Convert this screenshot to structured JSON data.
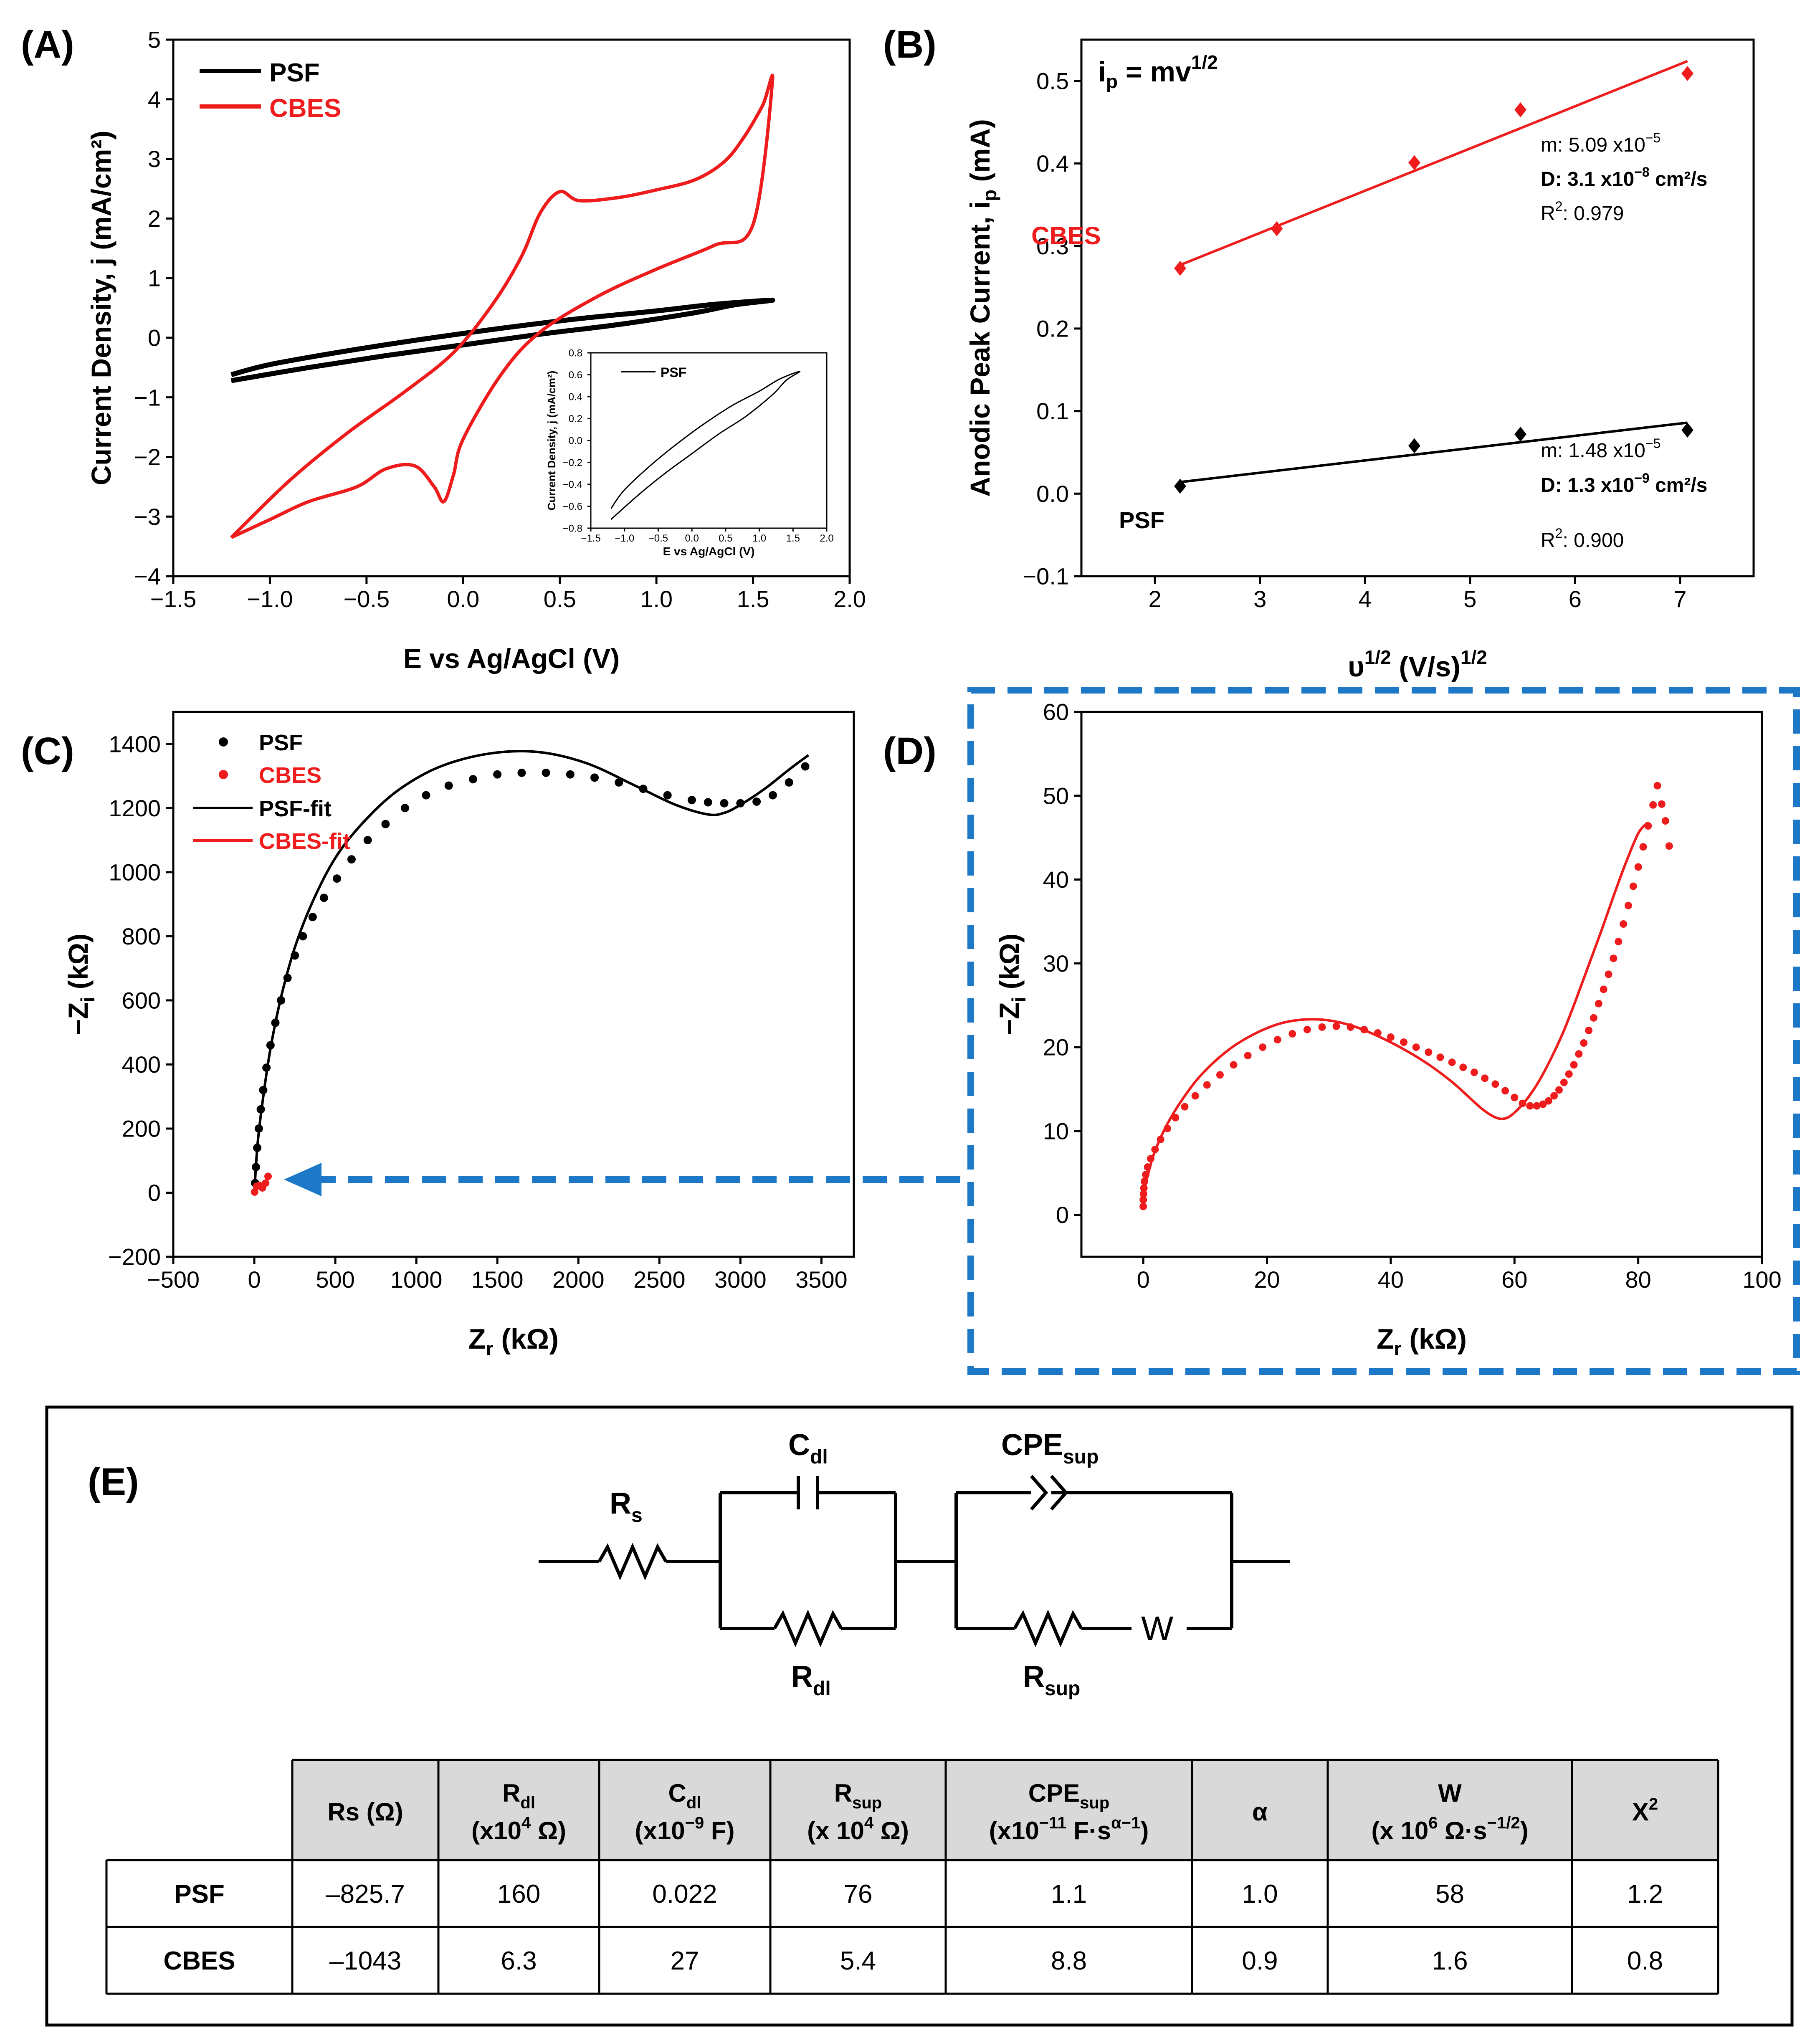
{
  "panels": {
    "A": {
      "label": "(A)"
    },
    "B": {
      "label": "(B)"
    },
    "C": {
      "label": "(C)"
    },
    "D": {
      "label": "(D)"
    },
    "E": {
      "label": "(E)"
    }
  },
  "colors": {
    "psf": "#000000",
    "cbes": "#ee1c1c",
    "highlight": "#1d78c8",
    "table_header_bg": "#d9d9d9"
  },
  "chart_data": [
    {
      "id": "A",
      "type": "line",
      "title": "",
      "xlabel": "E vs Ag/AgCl (V)",
      "ylabel": "Current Density, j (mA/cm²)",
      "xlim": [
        -1.5,
        2.0
      ],
      "ylim": [
        -4,
        5
      ],
      "xticks": [
        "−1.5",
        "−1.0",
        "−0.5",
        "0.0",
        "0.5",
        "1.0",
        "1.5",
        "2.0"
      ],
      "yticks": [
        "−4",
        "−3",
        "−2",
        "−1",
        "0",
        "1",
        "2",
        "3",
        "4",
        "5"
      ],
      "legend": [
        "PSF",
        "CBES"
      ],
      "series": [
        {
          "name": "PSF",
          "x": [
            -1.2,
            -0.8,
            -0.4,
            0.0,
            0.4,
            0.8,
            1.2,
            1.4,
            1.6,
            1.3,
            1.0,
            0.6,
            0.2,
            -0.2,
            -0.6,
            -1.0,
            -1.2
          ],
          "y": [
            -0.72,
            -0.5,
            -0.3,
            -0.12,
            0.06,
            0.22,
            0.42,
            0.55,
            0.63,
            0.56,
            0.45,
            0.32,
            0.16,
            -0.02,
            -0.22,
            -0.45,
            -0.62
          ]
        },
        {
          "name": "CBES",
          "x": [
            -1.2,
            -0.9,
            -0.6,
            -0.3,
            -0.05,
            0.15,
            0.3,
            0.4,
            0.5,
            0.6,
            0.8,
            1.0,
            1.2,
            1.35,
            1.45,
            1.55,
            1.6,
            1.5,
            1.3,
            1.0,
            0.7,
            0.4,
            0.2,
            0.0,
            -0.05,
            -0.1,
            -0.15,
            -0.25,
            -0.4,
            -0.55,
            -0.8,
            -1.0,
            -1.2
          ],
          "y": [
            -3.35,
            -2.4,
            -1.6,
            -0.9,
            -0.25,
            0.55,
            1.35,
            2.1,
            2.45,
            2.3,
            2.35,
            2.48,
            2.65,
            2.95,
            3.35,
            3.9,
            4.3,
            1.9,
            1.55,
            1.15,
            0.7,
            0.1,
            -0.6,
            -1.7,
            -2.3,
            -2.75,
            -2.5,
            -2.15,
            -2.2,
            -2.5,
            -2.75,
            -3.05,
            -3.35
          ]
        }
      ],
      "inset": {
        "xlabel": "E vs Ag/AgCl (V)",
        "ylabel": "Current Density, j (mA/cm²)",
        "legend": "PSF",
        "xlim": [
          -1.5,
          2.0
        ],
        "ylim": [
          -0.8,
          0.8
        ],
        "xticks": [
          "−1.5",
          "−1.0",
          "−0.5",
          "0.0",
          "0.5",
          "1.0",
          "1.5",
          "2.0"
        ],
        "yticks": [
          "−0.8",
          "−0.6",
          "−0.4",
          "−0.2",
          "0.0",
          "0.2",
          "0.4",
          "0.6",
          "0.8"
        ]
      }
    },
    {
      "id": "B",
      "type": "scatter",
      "xlabel": "υ",
      "xlabel_sup": "1/2",
      "xlabel_tail": " (V/s)",
      "xlabel_tail_sup": "1/2",
      "ylabel": "Anodic Peak Current, i",
      "ylabel_sub": "p",
      "ylabel_tail": " (mA)",
      "xlim": [
        1.3,
        7.7
      ],
      "ylim": [
        -0.1,
        0.55
      ],
      "xticks": [
        "2",
        "3",
        "4",
        "5",
        "6",
        "7"
      ],
      "yticks": [
        "−0.1",
        "0.0",
        "0.1",
        "0.2",
        "0.3",
        "0.4",
        "0.5"
      ],
      "equation": "i",
      "equation_sub": "p",
      "equation_mid": " = mv",
      "equation_sup": "1/2",
      "series": [
        {
          "name": "CBES",
          "x": [
            2.24,
            3.16,
            4.47,
            5.48,
            7.07
          ],
          "y": [
            0.273,
            0.321,
            0.401,
            0.465,
            0.509
          ],
          "fit": {
            "x": [
              2.24,
              7.07
            ],
            "y": [
              0.277,
              0.524
            ]
          },
          "m": "m: 5.09 x10",
          "m_exp": "−5",
          "D": "D: 3.1 x10",
          "D_exp": "−8",
          "D_unit": " cm²/s",
          "R2_label": "R",
          "R2_sup": "2",
          "R2_val": ": 0.979"
        },
        {
          "name": "PSF",
          "x": [
            2.24,
            4.47,
            5.48,
            7.07
          ],
          "y": [
            0.009,
            0.058,
            0.072,
            0.077
          ],
          "fit": {
            "x": [
              2.24,
              7.07
            ],
            "y": [
              0.014,
              0.086
            ]
          },
          "m": "m: 1.48 x10",
          "m_exp": "−5",
          "D": "D: 1.3 x10",
          "D_exp": "−9",
          "D_unit": " cm²/s",
          "R2_label": "R",
          "R2_sup": "2",
          "R2_val": ": 0.900"
        }
      ]
    },
    {
      "id": "C",
      "type": "scatter",
      "xlabel": "Z",
      "xlabel_sub": "r",
      "xlabel_tail": " (kΩ)",
      "ylabel": "−Z",
      "ylabel_sub": "i",
      "ylabel_tail": " (kΩ)",
      "xlim": [
        -500,
        3700
      ],
      "ylim": [
        -200,
        1500
      ],
      "xticks": [
        "−500",
        "0",
        "500",
        "1000",
        "1500",
        "2000",
        "2500",
        "3000",
        "3500"
      ],
      "yticks": [
        "−200",
        "0",
        "200",
        "400",
        "600",
        "800",
        "1000",
        "1200",
        "1400"
      ],
      "legend": [
        "PSF",
        "CBES",
        "PSF-fit",
        "CBES-fit"
      ],
      "series": [
        {
          "name": "PSF",
          "kind": "points",
          "x": [
            5,
            10,
            18,
            28,
            40,
            55,
            75,
            100,
            130,
            165,
            205,
            250,
            300,
            360,
            430,
            510,
            600,
            700,
            810,
            930,
            1060,
            1200,
            1350,
            1500,
            1650,
            1800,
            1950,
            2100,
            2250,
            2400,
            2550,
            2700,
            2800,
            2900,
            3000,
            3100,
            3200,
            3300,
            3400
          ],
          "y": [
            30,
            80,
            140,
            200,
            260,
            320,
            390,
            460,
            530,
            600,
            670,
            740,
            800,
            860,
            920,
            980,
            1040,
            1100,
            1150,
            1200,
            1240,
            1270,
            1290,
            1305,
            1310,
            1310,
            1305,
            1295,
            1280,
            1260,
            1240,
            1225,
            1218,
            1215,
            1215,
            1220,
            1240,
            1280,
            1330
          ]
        },
        {
          "name": "PSF-fit",
          "kind": "line",
          "x": [
            0,
            20,
            50,
            100,
            170,
            260,
            380,
            520,
            700,
            900,
            1150,
            1450,
            1750,
            2050,
            2350,
            2600,
            2800,
            2900,
            3000,
            3150,
            3300,
            3420
          ],
          "y": [
            0,
            150,
            280,
            450,
            620,
            780,
            930,
            1060,
            1170,
            1260,
            1330,
            1370,
            1375,
            1340,
            1270,
            1210,
            1180,
            1185,
            1210,
            1260,
            1320,
            1365
          ]
        },
        {
          "name": "CBES",
          "kind": "points",
          "x": [
            2,
            15,
            30,
            50,
            70,
            85
          ],
          "y": [
            2,
            20,
            23,
            15,
            30,
            51
          ]
        }
      ]
    },
    {
      "id": "D",
      "type": "scatter",
      "xlabel": "Z",
      "xlabel_sub": "r",
      "xlabel_tail": " (kΩ)",
      "ylabel": "−Z",
      "ylabel_sub": "i",
      "ylabel_tail": " (kΩ)",
      "xlim": [
        -10,
        100
      ],
      "ylim": [
        -5,
        60
      ],
      "xticks": [
        "0",
        "20",
        "40",
        "60",
        "80",
        "100"
      ],
      "yticks": [
        "0",
        "10",
        "20",
        "30",
        "40",
        "50",
        "60"
      ],
      "series": [
        {
          "name": "CBES",
          "kind": "points",
          "x": [
            0.0,
            0.0,
            0.05,
            0.1,
            0.2,
            0.4,
            0.7,
            1.2,
            1.9,
            2.8,
            3.9,
            5.2,
            6.7,
            8.4,
            10.3,
            12.4,
            14.6,
            16.9,
            19.3,
            21.7,
            24.1,
            26.5,
            28.9,
            31.2,
            33.5,
            35.7,
            37.9,
            40.0,
            42.1,
            44.1,
            46.1,
            48.0,
            49.9,
            51.7,
            53.5,
            55.2,
            56.9,
            58.5,
            60.0,
            61.3,
            62.5,
            63.6,
            64.6,
            65.5,
            66.4,
            67.2,
            68.0,
            68.8,
            69.6,
            70.4,
            71.2,
            72.0,
            72.8,
            73.6,
            74.4,
            75.2,
            76.0,
            76.8,
            77.6,
            78.4,
            79.2,
            80.0,
            80.8,
            81.6,
            82.4,
            83.1,
            83.8,
            84.4,
            85.0
          ],
          "y": [
            1.0,
            1.8,
            2.5,
            3.2,
            4.0,
            4.8,
            5.7,
            6.7,
            7.8,
            9.0,
            10.3,
            11.6,
            12.9,
            14.2,
            15.5,
            16.7,
            17.9,
            19.0,
            20.0,
            20.9,
            21.6,
            22.1,
            22.4,
            22.5,
            22.4,
            22.1,
            21.7,
            21.2,
            20.6,
            20.0,
            19.4,
            18.8,
            18.2,
            17.6,
            17.0,
            16.3,
            15.6,
            14.8,
            14.0,
            13.3,
            13.0,
            13.0,
            13.2,
            13.6,
            14.2,
            14.9,
            15.8,
            16.8,
            17.9,
            19.2,
            20.5,
            22.0,
            23.5,
            25.2,
            26.9,
            28.7,
            30.6,
            32.6,
            34.7,
            36.9,
            39.2,
            41.5,
            43.9,
            46.4,
            48.9,
            51.2,
            49.0,
            47.0,
            44.0
          ]
        },
        {
          "name": "CBES-fit",
          "kind": "line",
          "x": [
            0,
            1,
            2,
            4,
            7,
            10,
            14,
            18,
            22,
            26,
            30,
            34,
            38,
            42,
            46,
            50,
            53,
            55,
            57,
            58.5,
            60,
            62,
            64,
            66,
            68,
            70,
            72,
            74,
            76,
            78,
            80,
            81.5
          ],
          "y": [
            2.5,
            5.5,
            7.8,
            11.0,
            14.5,
            17.2,
            19.8,
            21.6,
            22.8,
            23.3,
            23.2,
            22.5,
            21.3,
            19.8,
            18.0,
            15.8,
            13.8,
            12.5,
            11.6,
            11.5,
            12.2,
            13.8,
            16.0,
            18.8,
            22.0,
            25.8,
            29.8,
            33.8,
            38.0,
            42.0,
            45.5,
            46.8
          ]
        }
      ]
    }
  ],
  "circuit": {
    "Rs": "R",
    "Rs_sub": "s",
    "Cdl": "C",
    "Cdl_sub": "dl",
    "Rdl": "R",
    "Rdl_sub": "dl",
    "CPE": "CPE",
    "CPE_sub": "sup",
    "Rsup": "R",
    "Rsup_sub": "sup",
    "W": "W"
  },
  "table": {
    "headers": [
      {
        "line1": "Rs (Ω)",
        "line2": ""
      },
      {
        "line1": "R",
        "line1_sub": "dl",
        "line2": "(x10",
        "line2_sup": "4",
        "line2_tail": " Ω)"
      },
      {
        "line1": "C",
        "line1_sub": "dl",
        "line2": "(x10",
        "line2_sup": "−9",
        "line2_tail": " F)"
      },
      {
        "line1": "R",
        "line1_sub": "sup",
        "line2": "(x 10",
        "line2_sup": "4",
        "line2_tail": " Ω)"
      },
      {
        "line1": "CPE",
        "line1_sub": "sup",
        "line2": "(x10",
        "line2_sup": "−11",
        "line2_tail": " F·s",
        "line2_sup2": "α−1",
        "line2_tail2": ")"
      },
      {
        "line1": "α",
        "line2": ""
      },
      {
        "line1": "W",
        "line2": "(x 10",
        "line2_sup": "6",
        "line2_tail": " Ω·s",
        "line2_sup2": "−1/2",
        "line2_tail2": ")"
      },
      {
        "line1": "X",
        "line1_sup": "2",
        "line2": ""
      }
    ],
    "rows": [
      {
        "label": "PSF",
        "values": [
          "–825.7",
          "160",
          "0.022",
          "76",
          "1.1",
          "1.0",
          "58",
          "1.2"
        ]
      },
      {
        "label": "CBES",
        "values": [
          "–1043",
          "6.3",
          "27",
          "5.4",
          "8.8",
          "0.9",
          "1.6",
          "0.8"
        ]
      }
    ]
  }
}
